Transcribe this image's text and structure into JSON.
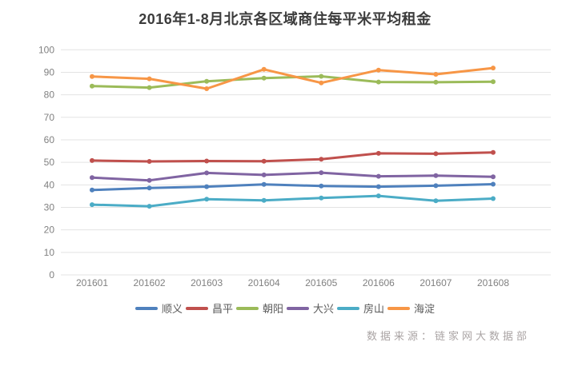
{
  "title": "2016年1-8月北京各区域商住每平米平均租金",
  "source": "数据来源：链家网大数据部",
  "colors": {
    "shunyi": "#4F81BD",
    "changping": "#C0504D",
    "chaoyang": "#9BBB59",
    "daxing": "#8064A2",
    "fangshan": "#4BACC6",
    "haidian": "#F79646",
    "grid": "#e3e3e3",
    "tick_text": "#808080",
    "title_text": "#3c3c3c"
  },
  "chart_data": {
    "type": "line",
    "title": "2016年1-8月北京各区域商住每平米平均租金",
    "categories": [
      "201601",
      "201602",
      "201603",
      "201604",
      "201605",
      "201606",
      "201607",
      "201608"
    ],
    "series": [
      {
        "name": "顺义",
        "key": "shunyi",
        "color": "#4F81BD",
        "values": [
          37.7,
          38.6,
          39.2,
          40.2,
          39.5,
          39.2,
          39.6,
          40.3
        ]
      },
      {
        "name": "昌平",
        "key": "changping",
        "color": "#C0504D",
        "values": [
          50.8,
          50.4,
          50.6,
          50.5,
          51.4,
          54.0,
          53.8,
          54.4
        ]
      },
      {
        "name": "朝阳",
        "key": "chaoyang",
        "color": "#9BBB59",
        "values": [
          83.9,
          83.2,
          86.0,
          87.4,
          88.2,
          85.7,
          85.6,
          85.8
        ]
      },
      {
        "name": "大兴",
        "key": "daxing",
        "color": "#8064A2",
        "values": [
          43.2,
          42.0,
          45.3,
          44.4,
          45.4,
          43.8,
          44.1,
          43.6
        ]
      },
      {
        "name": "房山",
        "key": "fangshan",
        "color": "#4BACC6",
        "values": [
          31.2,
          30.5,
          33.6,
          33.1,
          34.2,
          35.1,
          32.9,
          33.9
        ]
      },
      {
        "name": "海淀",
        "key": "haidian",
        "color": "#F79646",
        "values": [
          88.1,
          87.1,
          82.7,
          91.3,
          85.3,
          91.0,
          89.1,
          91.9
        ]
      }
    ],
    "xlabel": "",
    "ylabel": "",
    "ylim": [
      0,
      100
    ],
    "ytick_step": 10,
    "ytick_labels": [
      "0",
      "10",
      "20",
      "30",
      "40",
      "50",
      "60",
      "70",
      "80",
      "90",
      "100"
    ],
    "grid": true,
    "legend_position": "bottom",
    "source_note": "数据来源：链家网大数据部"
  }
}
